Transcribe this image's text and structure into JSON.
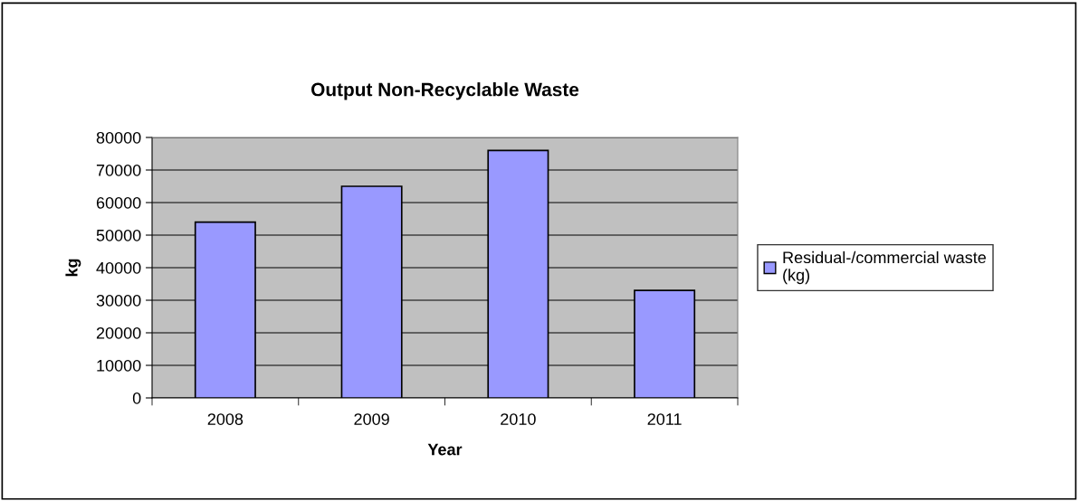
{
  "chart_data": {
    "type": "bar",
    "title": "Output Non-Recyclable Waste",
    "xlabel": "Year",
    "ylabel": "kg",
    "categories": [
      "2008",
      "2009",
      "2010",
      "2011"
    ],
    "series": [
      {
        "name": "Residual-/commercial waste\n(kg)",
        "color": "#9999ff",
        "values": [
          54000,
          65000,
          76000,
          33000
        ]
      }
    ],
    "ylim": [
      0,
      80000
    ],
    "yticks": [
      0,
      10000,
      20000,
      30000,
      40000,
      50000,
      60000,
      70000,
      80000
    ],
    "grid": "y",
    "legend": "right"
  }
}
